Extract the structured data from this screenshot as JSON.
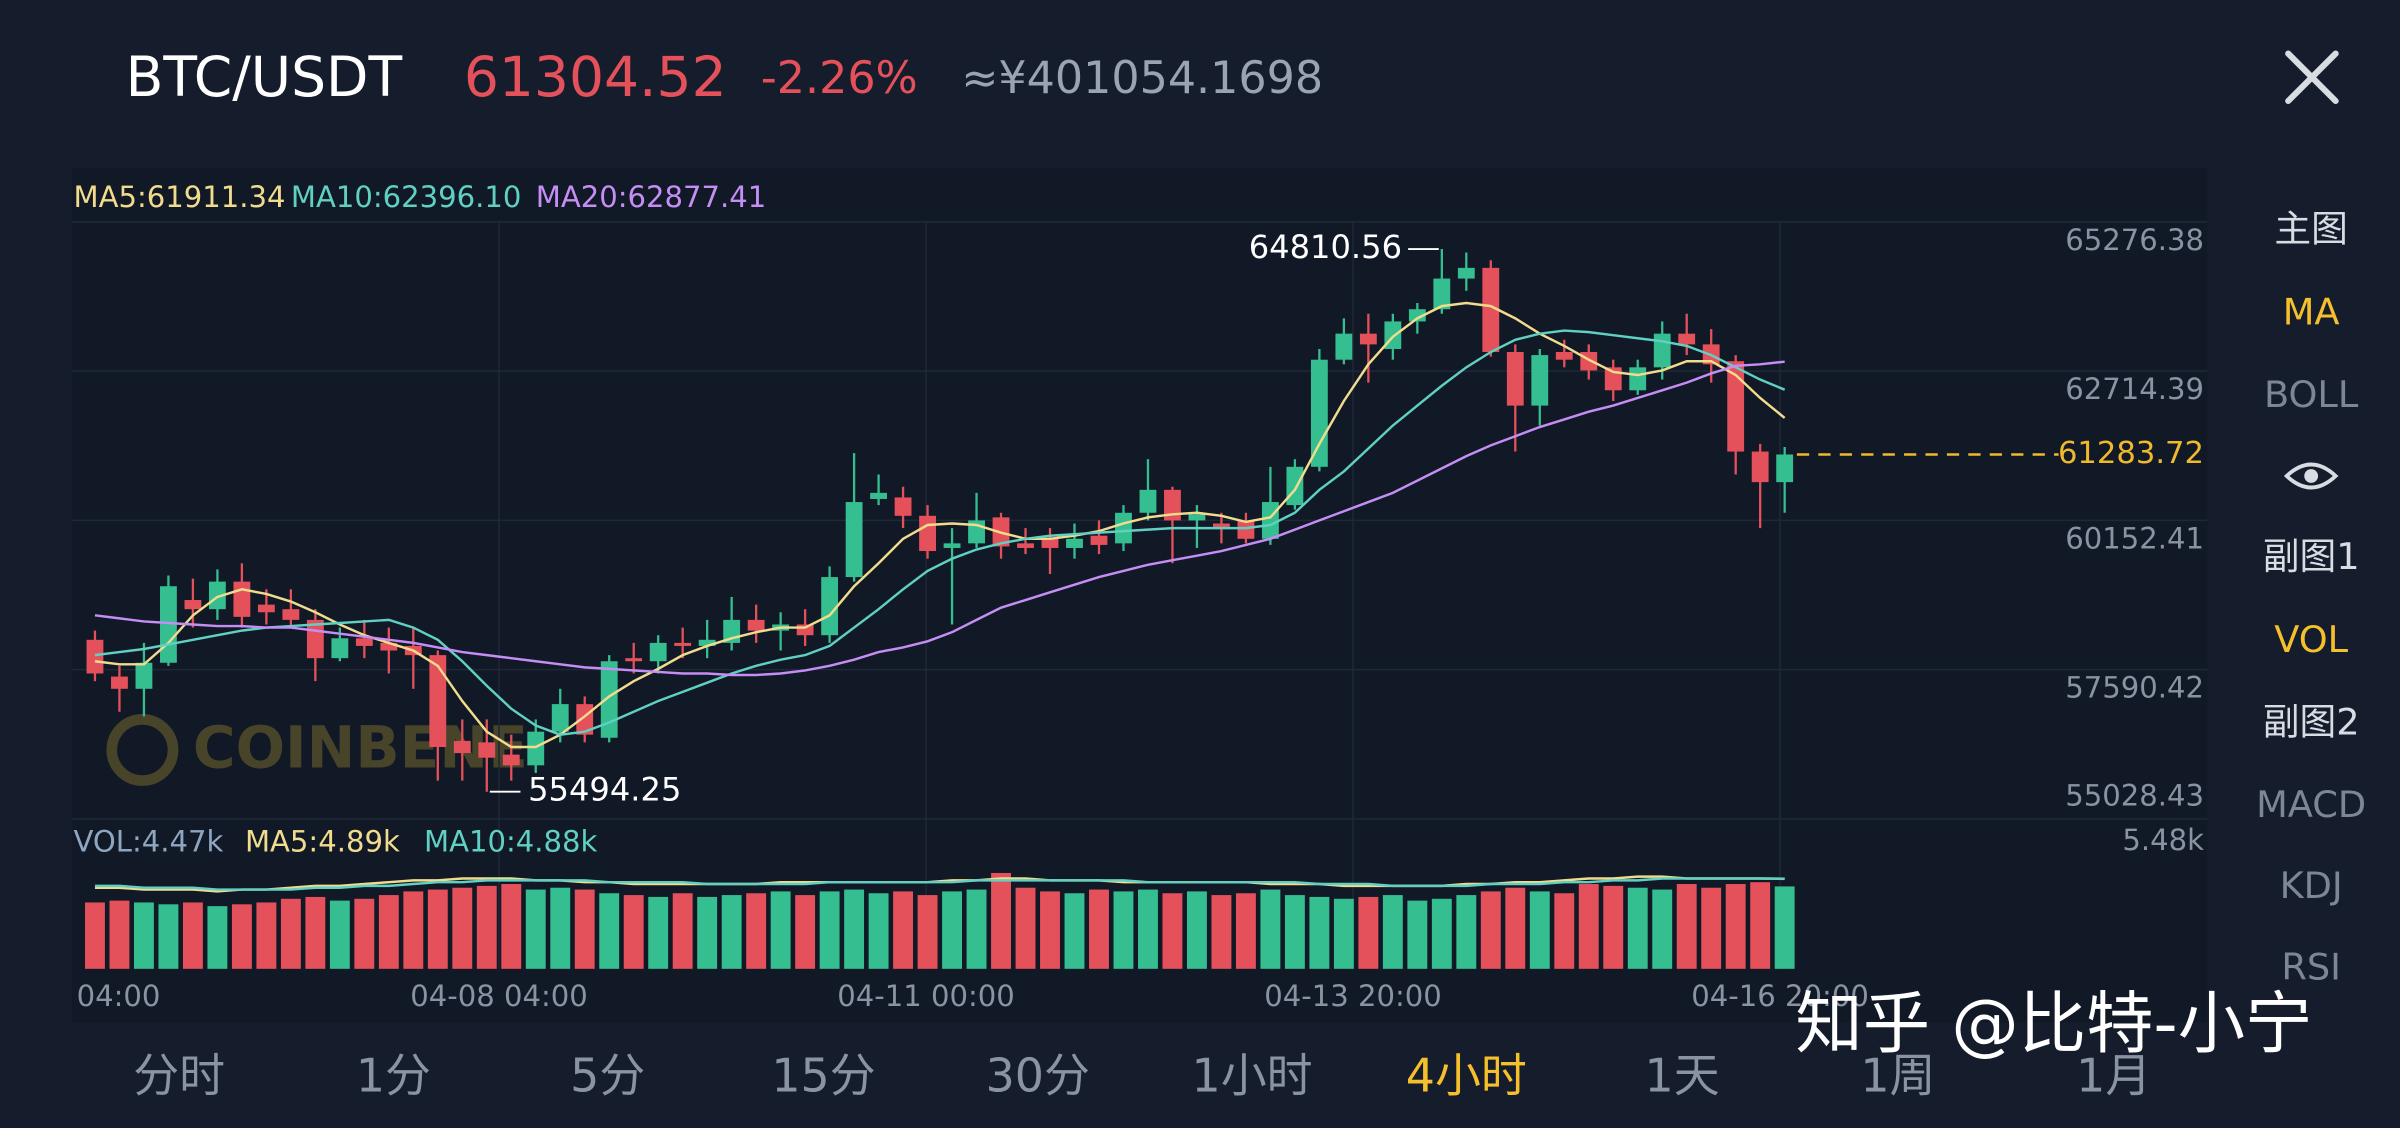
{
  "header": {
    "pair": "BTC/USDT",
    "price": "61304.52",
    "change": "-2.26%",
    "cny": "≈¥401054.1698"
  },
  "chart_data": {
    "type": "candlestick",
    "open": [
      58102,
      57471,
      57261,
      57708,
      58785,
      58628,
      59101,
      58706,
      58628,
      58444,
      57787,
      58128,
      58049,
      57997,
      57839,
      56367,
      56341,
      56131,
      55947,
      56525,
      56998,
      56420,
      57787,
      57734,
      58049,
      57997,
      58049,
      58444,
      58260,
      58365,
      58181,
      59179,
      60520,
      60546,
      60231,
      59679,
      59758,
      60204,
      59758,
      59836,
      59679,
      59889,
      59758,
      60283,
      60677,
      60152,
      60099,
      60152,
      59836,
      60415,
      61072,
      62911,
      63358,
      63095,
      63568,
      63778,
      64304,
      64488,
      63043,
      62123,
      63043,
      63043,
      62780,
      62386,
      62780,
      63358,
      63174,
      62885,
      61334,
      60809
    ],
    "high": [
      58260,
      57655,
      58049,
      59206,
      59153,
      59311,
      59416,
      58969,
      58969,
      58628,
      58312,
      58444,
      58312,
      58312,
      57918,
      56735,
      56735,
      56473,
      56735,
      57261,
      57130,
      57839,
      58049,
      58181,
      58312,
      58444,
      58838,
      58706,
      58575,
      58628,
      59363,
      61308,
      60940,
      60730,
      60415,
      60020,
      60625,
      60283,
      60020,
      60020,
      60099,
      60152,
      60415,
      61203,
      60730,
      60415,
      60283,
      60283,
      61072,
      61203,
      63095,
      63621,
      63700,
      63700,
      63884,
      64810.56,
      64751,
      64619,
      63174,
      63095,
      63253,
      63174,
      62911,
      62911,
      63568,
      63700,
      63437,
      62990,
      61466,
      61413
    ],
    "low": [
      57392,
      56867,
      56788,
      57655,
      58312,
      58444,
      58312,
      58365,
      58312,
      57392,
      57734,
      57787,
      57524,
      57261,
      55684,
      55684,
      55494.25,
      55684,
      55816,
      56341,
      56341,
      56341,
      57524,
      57524,
      57787,
      57787,
      57918,
      58049,
      57918,
      57997,
      58049,
      59101,
      60415,
      60020,
      59495,
      58365,
      59679,
      59495,
      59574,
      59232,
      59495,
      59574,
      59626,
      60152,
      59416,
      59679,
      59758,
      59758,
      59731,
      60336,
      60993,
      62832,
      62517,
      62911,
      63358,
      63700,
      64094,
      62964,
      61334,
      61781,
      62780,
      62570,
      62202,
      62307,
      62570,
      62990,
      62517,
      60940,
      60020,
      60283
    ],
    "close": [
      57524,
      57261,
      57708,
      59022,
      58628,
      59101,
      58496,
      58575,
      58444,
      57787,
      58128,
      57997,
      57918,
      57839,
      56262,
      56157,
      56078,
      55947,
      56525,
      56998,
      56473,
      57734,
      57734,
      58049,
      57997,
      58102,
      58444,
      58260,
      58365,
      58181,
      59179,
      60467,
      60625,
      60231,
      59626,
      59758,
      60152,
      59705,
      59679,
      59679,
      59836,
      59731,
      60283,
      60677,
      60152,
      60257,
      60020,
      59836,
      60467,
      61072,
      62911,
      63358,
      63174,
      63568,
      63778,
      64304,
      64488,
      63043,
      62123,
      62990,
      62911,
      62727,
      62386,
      62780,
      63358,
      63174,
      62832,
      61334,
      60809,
      61283.72
    ],
    "up_color": "#35bf91",
    "down_color": "#e5515b",
    "ylim": [
      55028.43,
      65276.38
    ],
    "yticks": [
      65276.38,
      62714.39,
      60152.41,
      57590.42,
      55028.43
    ],
    "x_labels": [
      "04:00",
      "04-08 04:00",
      "04-11 00:00",
      "04-13 20:00",
      "04-16 20:00"
    ],
    "grid": true,
    "ma": [
      {
        "name": "MA5:61911.34",
        "color": "#f1dc8e",
        "values": [
          57734,
          57681,
          57681,
          58049,
          58522,
          58838,
          58969,
          58890,
          58759,
          58575,
          58365,
          58181,
          58049,
          57918,
          57655,
          57051,
          56525,
          56262,
          56262,
          56473,
          56788,
          57130,
          57392,
          57603,
          57839,
          57997,
          58128,
          58233,
          58312,
          58312,
          58522,
          59022,
          59416,
          59836,
          60073,
          60099,
          60073,
          59942,
          59836,
          59836,
          59889,
          59968,
          60099,
          60204,
          60257,
          60283,
          60231,
          60126,
          60204,
          60677,
          61466,
          62202,
          62832,
          63305,
          63621,
          63831,
          63884,
          63831,
          63621,
          63358,
          63148,
          62911,
          62701,
          62648,
          62727,
          62885,
          62885,
          62648,
          62254,
          61911.34
        ]
      },
      {
        "name": "MA10:62396.10",
        "color": "#5fd0c2",
        "values": [
          57839,
          57892,
          57944,
          58023,
          58102,
          58181,
          58260,
          58312,
          58338,
          58365,
          58391,
          58417,
          58444,
          58312,
          58102,
          57734,
          57314,
          56919,
          56630,
          56473,
          56525,
          56683,
          56867,
          57051,
          57208,
          57366,
          57524,
          57655,
          57760,
          57839,
          57997,
          58312,
          58628,
          58969,
          59285,
          59495,
          59652,
          59758,
          59836,
          59889,
          59915,
          59942,
          59968,
          59994,
          60020,
          60020,
          60020,
          60020,
          60073,
          60283,
          60677,
          60993,
          61387,
          61781,
          62123,
          62464,
          62780,
          63043,
          63253,
          63358,
          63411,
          63384,
          63332,
          63279,
          63227,
          63148,
          62990,
          62780,
          62570,
          62396.1
        ]
      },
      {
        "name": "MA20:62877.41",
        "color": "#c58ef5",
        "values": [
          58522,
          58470,
          58417,
          58391,
          58365,
          58338,
          58338,
          58312,
          58312,
          58260,
          58207,
          58155,
          58102,
          58049,
          57971,
          57892,
          57839,
          57787,
          57734,
          57681,
          57629,
          57603,
          57576,
          57550,
          57524,
          57524,
          57498,
          57498,
          57524,
          57576,
          57655,
          57760,
          57892,
          57971,
          58076,
          58233,
          58444,
          58654,
          58785,
          58917,
          59048,
          59179,
          59285,
          59390,
          59469,
          59547,
          59626,
          59731,
          59836,
          59994,
          60152,
          60309,
          60467,
          60625,
          60835,
          61045,
          61256,
          61440,
          61597,
          61755,
          61886,
          62018,
          62123,
          62254,
          62386,
          62517,
          62675,
          62806,
          62832,
          62877.41
        ]
      }
    ],
    "annotations": [
      {
        "value": 64810.56,
        "label": "64810.56"
      },
      {
        "value": 55494.25,
        "label": "55494.25"
      }
    ],
    "last_price": {
      "value": 61283.72,
      "label": "61283.72",
      "color": "#f0b92c"
    },
    "watermark": "COINBENE",
    "volume": {
      "label": "VOL:4.47k",
      "ylim": [
        0,
        5.48
      ],
      "yticks": [
        {
          "value": 5.48,
          "label": "5.48k"
        }
      ],
      "values": [
        3.6,
        3.7,
        3.6,
        3.5,
        3.6,
        3.4,
        3.5,
        3.6,
        3.8,
        3.9,
        3.7,
        3.8,
        4.0,
        4.2,
        4.3,
        4.4,
        4.5,
        4.6,
        4.3,
        4.4,
        4.3,
        4.1,
        4.0,
        3.9,
        4.1,
        3.9,
        4.0,
        4.1,
        4.2,
        4.0,
        4.2,
        4.3,
        4.1,
        4.2,
        4.0,
        4.2,
        4.3,
        5.2,
        4.4,
        4.2,
        4.1,
        4.3,
        4.2,
        4.3,
        4.1,
        4.2,
        4.0,
        4.1,
        4.3,
        4.0,
        3.9,
        3.8,
        3.9,
        4.0,
        3.7,
        3.8,
        4.0,
        4.2,
        4.4,
        4.2,
        4.1,
        4.6,
        4.5,
        4.4,
        4.3,
        4.6,
        4.4,
        4.6,
        4.7,
        4.47
      ],
      "series": [
        {
          "name": "MA5:4.89k",
          "color": "#f1dc8e",
          "values": [
            4.4,
            4.4,
            4.3,
            4.3,
            4.3,
            4.2,
            4.3,
            4.3,
            4.4,
            4.5,
            4.5,
            4.6,
            4.7,
            4.8,
            4.8,
            4.9,
            4.9,
            4.9,
            4.8,
            4.8,
            4.7,
            4.7,
            4.6,
            4.6,
            4.6,
            4.6,
            4.6,
            4.6,
            4.7,
            4.7,
            4.7,
            4.7,
            4.7,
            4.7,
            4.7,
            4.8,
            4.8,
            4.9,
            4.9,
            4.8,
            4.8,
            4.8,
            4.7,
            4.7,
            4.7,
            4.7,
            4.7,
            4.7,
            4.6,
            4.6,
            4.6,
            4.5,
            4.5,
            4.5,
            4.5,
            4.5,
            4.6,
            4.6,
            4.7,
            4.7,
            4.8,
            4.9,
            4.9,
            5.0,
            5.0,
            4.9,
            4.9,
            4.9,
            4.9,
            4.89
          ]
        },
        {
          "name": "MA10:4.88k",
          "color": "#5fd0c2",
          "values": [
            4.5,
            4.5,
            4.4,
            4.4,
            4.4,
            4.3,
            4.3,
            4.3,
            4.3,
            4.4,
            4.4,
            4.5,
            4.5,
            4.6,
            4.7,
            4.7,
            4.8,
            4.8,
            4.8,
            4.8,
            4.8,
            4.7,
            4.7,
            4.7,
            4.7,
            4.6,
            4.6,
            4.6,
            4.6,
            4.6,
            4.7,
            4.7,
            4.7,
            4.7,
            4.7,
            4.7,
            4.8,
            4.8,
            4.8,
            4.8,
            4.8,
            4.8,
            4.8,
            4.7,
            4.7,
            4.7,
            4.7,
            4.7,
            4.7,
            4.7,
            4.6,
            4.6,
            4.6,
            4.5,
            4.5,
            4.5,
            4.5,
            4.6,
            4.6,
            4.6,
            4.7,
            4.7,
            4.8,
            4.8,
            4.9,
            4.9,
            4.9,
            4.9,
            4.9,
            4.88
          ]
        }
      ]
    }
  },
  "side_menu": [
    {
      "text": "主图",
      "active": false
    },
    {
      "text": "MA",
      "active": true
    },
    {
      "text": "BOLL",
      "active": false
    },
    {
      "text": "副图1",
      "active": false
    },
    {
      "text": "VOL",
      "active": true
    },
    {
      "text": "副图2",
      "active": false
    },
    {
      "text": "MACD",
      "active": false
    },
    {
      "text": "KDJ",
      "active": false
    },
    {
      "text": "RSI",
      "active": false
    }
  ],
  "timeframes": [
    {
      "text": "分时",
      "active": false
    },
    {
      "text": "1分",
      "active": false
    },
    {
      "text": "5分",
      "active": false
    },
    {
      "text": "15分",
      "active": false
    },
    {
      "text": "30分",
      "active": false
    },
    {
      "text": "1小时",
      "active": false
    },
    {
      "text": "4小时",
      "active": true
    },
    {
      "text": "1天",
      "active": false
    },
    {
      "text": "1周",
      "active": false
    },
    {
      "text": "1月",
      "active": false
    }
  ],
  "overlay": "知乎 @比特-小宁"
}
